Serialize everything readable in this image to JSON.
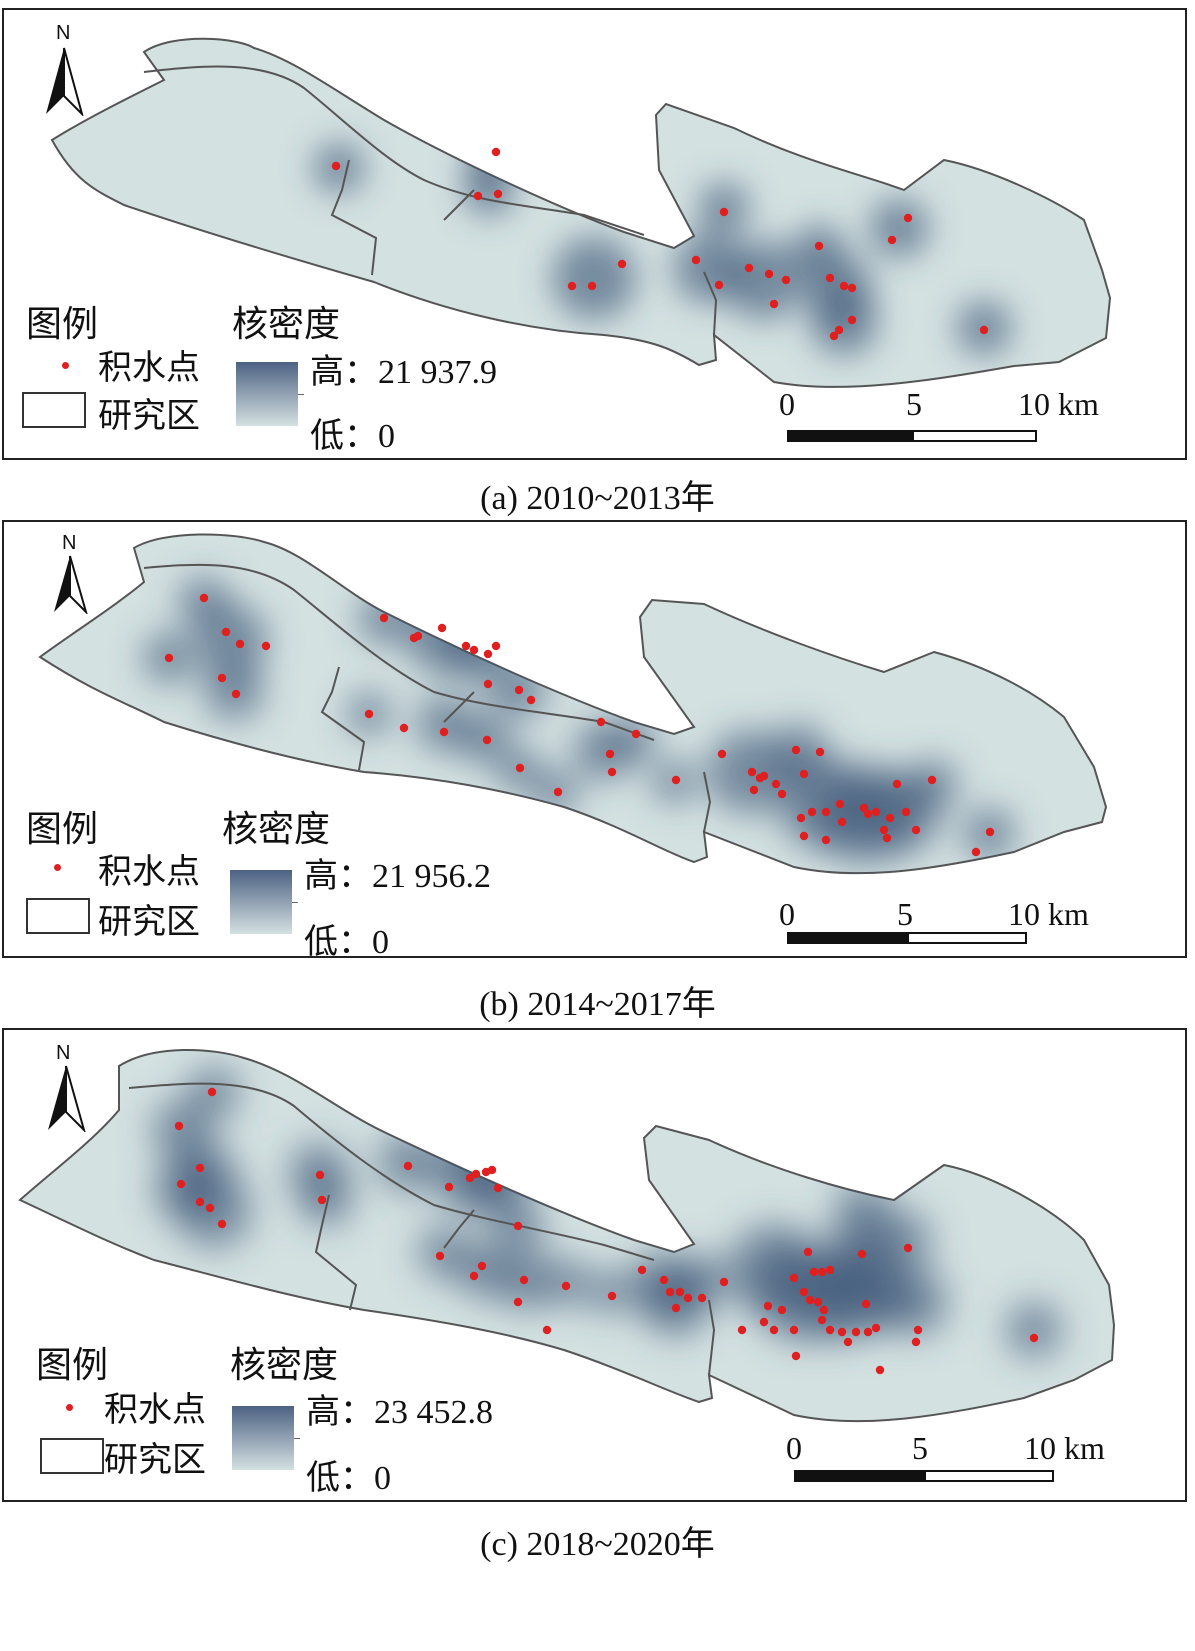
{
  "colors": {
    "area_fill": "#d4e1e1",
    "area_stroke": "#555555",
    "density_high": "#3e5577",
    "point": "#e02020"
  },
  "panels": [
    {
      "north_label": "N",
      "legend_title": "图例",
      "point_label": "积水点",
      "area_label": "研究区",
      "density_title": "核密度",
      "high_label": "高：",
      "high_value": "21 937.9",
      "low_label": "低：",
      "low_value": "0",
      "scale_labels": [
        "0",
        "5",
        "10 km"
      ],
      "caption": "(a) 2010~2013年"
    },
    {
      "north_label": "N",
      "legend_title": "图例",
      "point_label": "积水点",
      "area_label": "研究区",
      "density_title": "核密度",
      "high_label": "高：",
      "high_value": "21 956.2",
      "low_label": "低：",
      "low_value": "0",
      "scale_labels": [
        "0",
        "5",
        "10 km"
      ],
      "caption": "(b) 2014~2017年"
    },
    {
      "north_label": "N",
      "legend_title": "图例",
      "point_label": "积水点",
      "area_label": "研究区",
      "density_title": "核密度",
      "high_label": "高：",
      "high_value": "23 452.8",
      "low_label": "低：",
      "low_value": "0",
      "scale_labels": [
        "0",
        "5",
        "10 km"
      ],
      "caption": "(c) 2018~2020年"
    }
  ]
}
